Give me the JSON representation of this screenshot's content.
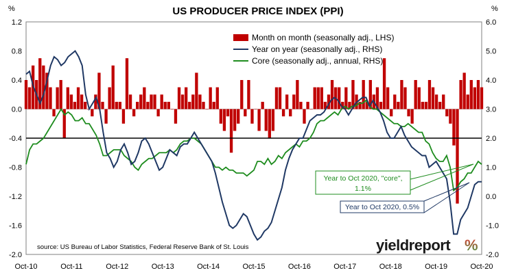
{
  "chart_data": {
    "type": "bar+line",
    "title": "US PRODUCER PRICE INDEX (PPI)",
    "left_axis_unit": "%",
    "right_axis_unit": "%",
    "left_axis": {
      "ylim": [
        -2.0,
        1.2
      ],
      "ticks": [
        "1.2",
        "0.8",
        "0.4",
        "0.0",
        "-0.4",
        "-0.8",
        "-1.2",
        "-1.6",
        "-2.0"
      ],
      "tick_values": [
        1.2,
        0.8,
        0.4,
        0.0,
        -0.4,
        -0.8,
        -1.2,
        -1.6,
        -2.0
      ]
    },
    "right_axis": {
      "ylim": [
        -2.0,
        6.0
      ],
      "ticks": [
        "6.0",
        "5.0",
        "4.0",
        "3.0",
        "2.0",
        "1.0",
        "0.0",
        "-1.0",
        "-2.0"
      ],
      "tick_values": [
        6,
        5,
        4,
        3,
        2,
        1,
        0,
        -1,
        -2
      ]
    },
    "x_ticks": [
      "Oct-10",
      "Oct-11",
      "Oct-12",
      "Oct-13",
      "Oct-14",
      "Oct-15",
      "Oct-16",
      "Oct-17",
      "Oct-18",
      "Oct-19",
      "Oct-20"
    ],
    "x_start": "Oct-10",
    "x_end": "Oct-20",
    "series": [
      {
        "name": "Month on month (seasonally adj., LHS)",
        "type": "bar",
        "axis": "left",
        "color": "#c00000",
        "values": [
          0.4,
          0.3,
          0.6,
          0.4,
          0.7,
          0.6,
          0.5,
          0.3,
          -0.1,
          0.3,
          0.4,
          -0.4,
          0.3,
          0.2,
          0.1,
          0.3,
          0.2,
          0.1,
          0.0,
          -0.1,
          0.2,
          0.5,
          0.1,
          -0.2,
          0.3,
          0.6,
          0.1,
          0.1,
          -0.2,
          0.7,
          0.2,
          -0.1,
          0.1,
          0.2,
          0.3,
          0.1,
          0.2,
          0.2,
          -0.1,
          0.2,
          0.1,
          0.1,
          0.0,
          -0.2,
          0.3,
          0.2,
          0.3,
          0.1,
          0.2,
          0.5,
          0.2,
          0.1,
          0.0,
          0.3,
          0.1,
          0.3,
          -0.2,
          -0.3,
          -0.1,
          -0.6,
          -0.3,
          -0.2,
          0.4,
          -0.1,
          0.4,
          -0.2,
          0.0,
          -0.3,
          0.1,
          -0.3,
          -0.4,
          -0.3,
          0.3,
          0.3,
          -0.1,
          0.2,
          -0.1,
          0.2,
          0.4,
          0.1,
          -0.2,
          0.1,
          0.0,
          0.3,
          0.3,
          0.3,
          0.1,
          0.2,
          0.4,
          0.3,
          0.3,
          0.1,
          0.3,
          0.1,
          0.4,
          0.2,
          0.1,
          0.4,
          0.1,
          0.4,
          0.2,
          0.3,
          0.1,
          0.7,
          0.3,
          -0.1,
          0.2,
          0.1,
          0.4,
          0.3,
          -0.1,
          -0.2,
          0.4,
          0.3,
          0.1,
          0.1,
          0.4,
          0.3,
          0.2,
          0.1,
          0.2,
          -0.1,
          -0.2,
          -0.5,
          -1.3,
          0.4,
          0.5,
          0.2,
          0.4,
          0.3,
          0.4,
          0.3
        ]
      },
      {
        "name": "Year on year (seasonally adj., RHS)",
        "type": "line",
        "axis": "right",
        "color": "#1f3864",
        "values": [
          4.2,
          4.3,
          3.8,
          3.5,
          3.2,
          3.5,
          4.0,
          4.5,
          4.8,
          4.7,
          4.5,
          4.6,
          4.8,
          4.9,
          5.0,
          4.8,
          4.5,
          3.5,
          3.0,
          3.2,
          3.4,
          3.0,
          2.2,
          1.5,
          1.3,
          1.0,
          1.2,
          1.6,
          1.8,
          1.5,
          1.1,
          1.2,
          1.5,
          1.9,
          2.0,
          1.8,
          1.5,
          1.2,
          0.9,
          1.0,
          1.3,
          1.6,
          1.5,
          1.4,
          1.7,
          1.8,
          1.8,
          2.0,
          2.2,
          2.0,
          1.8,
          1.6,
          1.4,
          1.2,
          0.8,
          0.3,
          -0.2,
          -0.6,
          -1.0,
          -1.1,
          -1.0,
          -0.8,
          -0.6,
          -0.7,
          -1.0,
          -1.3,
          -1.5,
          -1.4,
          -1.2,
          -1.1,
          -0.9,
          -0.5,
          -0.1,
          0.3,
          0.9,
          1.3,
          1.6,
          1.8,
          2.0,
          2.0,
          2.3,
          2.6,
          2.7,
          2.8,
          2.8,
          2.9,
          3.1,
          3.3,
          3.4,
          3.3,
          3.1,
          3.0,
          2.8,
          3.0,
          3.2,
          3.3,
          3.4,
          3.4,
          3.1,
          3.3,
          3.1,
          2.9,
          2.6,
          2.2,
          2.0,
          2.0,
          2.2,
          2.4,
          2.1,
          1.9,
          1.7,
          1.6,
          1.5,
          1.4,
          1.4,
          1.0,
          1.1,
          1.2,
          1.0,
          0.8,
          0.6,
          -0.2,
          -1.3,
          -1.3,
          -0.8,
          -0.6,
          -0.4,
          0.0,
          0.4,
          0.5,
          0.5
        ]
      },
      {
        "name": "Core (seasonally adj., annual, RHS)",
        "type": "line",
        "axis": "right",
        "color": "#1e8c1e",
        "values": [
          1.1,
          1.6,
          1.8,
          1.8,
          1.9,
          2.0,
          2.2,
          2.4,
          2.6,
          2.8,
          3.0,
          2.8,
          2.9,
          2.8,
          2.6,
          2.6,
          2.7,
          2.5,
          2.5,
          2.3,
          2.1,
          1.8,
          1.4,
          1.4,
          1.5,
          1.6,
          1.6,
          1.6,
          1.4,
          1.3,
          1.2,
          1.0,
          0.9,
          1.1,
          1.2,
          1.3,
          1.3,
          1.4,
          1.5,
          1.5,
          1.5,
          1.6,
          1.5,
          1.6,
          1.8,
          1.9,
          1.9,
          2.0,
          2.0,
          1.9,
          1.8,
          1.6,
          1.4,
          1.2,
          1.0,
          1.0,
          0.9,
          1.0,
          0.9,
          0.9,
          0.8,
          0.8,
          0.8,
          0.7,
          0.8,
          0.9,
          1.2,
          1.2,
          1.1,
          1.3,
          1.1,
          1.2,
          1.4,
          1.3,
          1.5,
          1.6,
          1.7,
          1.8,
          1.7,
          1.9,
          1.9,
          2.0,
          2.2,
          2.5,
          2.6,
          2.6,
          2.7,
          2.8,
          2.9,
          2.8,
          3.0,
          3.1,
          3.0,
          3.1,
          3.1,
          3.2,
          3.2,
          3.3,
          3.1,
          3.0,
          3.0,
          2.9,
          2.8,
          2.7,
          2.6,
          2.5,
          2.5,
          2.4,
          2.4,
          2.5,
          2.4,
          2.3,
          2.2,
          2.2,
          1.9,
          1.8,
          1.5,
          1.3,
          1.2,
          1.2,
          1.4,
          1.0,
          0.2,
          0.3,
          0.5,
          0.6,
          0.8,
          0.8,
          1.0,
          1.2,
          1.1
        ]
      }
    ],
    "reference_line": {
      "axis": "right",
      "value": 2.0,
      "color": "#000000"
    },
    "annotations": [
      {
        "text_line1": "Year to Oct 2020, \"core\",",
        "text_line2": "1.1%",
        "color": "#1e8c1e",
        "series": "core"
      },
      {
        "text": "Year to Oct 2020, 0.5%",
        "color": "#1f3864",
        "series": "yoy"
      }
    ],
    "source": "source: US Bureau of Labor Statistics, Federal Reserve Bank of St. Louis",
    "grid": false,
    "legend_placement": "top-center"
  },
  "logo": {
    "text": "yieldreport",
    "symbol": "%"
  }
}
